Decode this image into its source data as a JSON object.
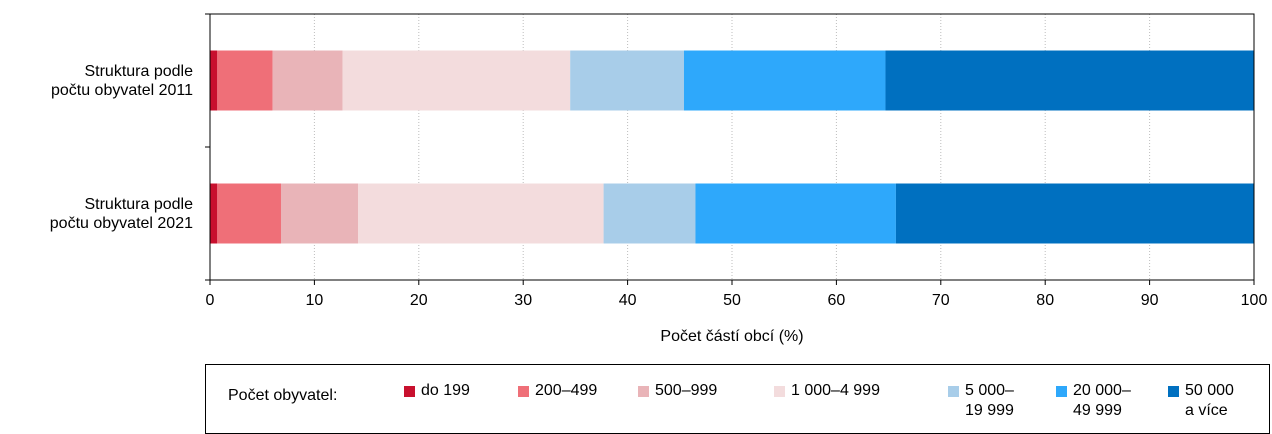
{
  "chart_data": {
    "type": "bar",
    "orientation": "horizontal",
    "stacked": true,
    "categories": [
      "Struktura podle počtu obyvatel 2011",
      "Struktura podle počtu obyvatel 2021"
    ],
    "category_lines": [
      [
        "Struktura podle",
        "počtu obyvatel 2011"
      ],
      [
        "Struktura podle",
        "počtu obyvatel 2021"
      ]
    ],
    "series": [
      {
        "name": "do 199",
        "name_lines": [
          "do 199"
        ],
        "color": "#c8102e",
        "values": [
          0.7,
          0.7
        ]
      },
      {
        "name": "200–499",
        "name_lines": [
          "200–499"
        ],
        "color": "#ef6f78",
        "values": [
          5.3,
          6.1
        ]
      },
      {
        "name": "500–999",
        "name_lines": [
          "500–999"
        ],
        "color": "#e9b4b8",
        "values": [
          6.7,
          7.4
        ]
      },
      {
        "name": "1 000–4 999",
        "name_lines": [
          "1 000–4 999"
        ],
        "color": "#f3dcdd",
        "values": [
          21.8,
          23.5
        ]
      },
      {
        "name": "5 000–19 999",
        "name_lines": [
          "5 000–",
          "19 999"
        ],
        "color": "#a8cde9",
        "values": [
          10.9,
          8.8
        ]
      },
      {
        "name": "20 000–49 999",
        "name_lines": [
          "20 000–",
          "49 999"
        ],
        "color": "#2ea8fb",
        "values": [
          19.3,
          19.2
        ]
      },
      {
        "name": "50 000 a více",
        "name_lines": [
          "50 000",
          "a více"
        ],
        "color": "#0070c0",
        "values": [
          35.3,
          34.3
        ]
      }
    ],
    "xlabel": "Počet částí obcí (%)",
    "xlim": [
      0,
      100
    ],
    "xticks": [
      "0",
      "10",
      "20",
      "30",
      "40",
      "50",
      "60",
      "70",
      "80",
      "90",
      "100"
    ],
    "grid": "vertical dotted",
    "legend_title": "Počet obyvatel:",
    "legend_position": "bottom"
  }
}
